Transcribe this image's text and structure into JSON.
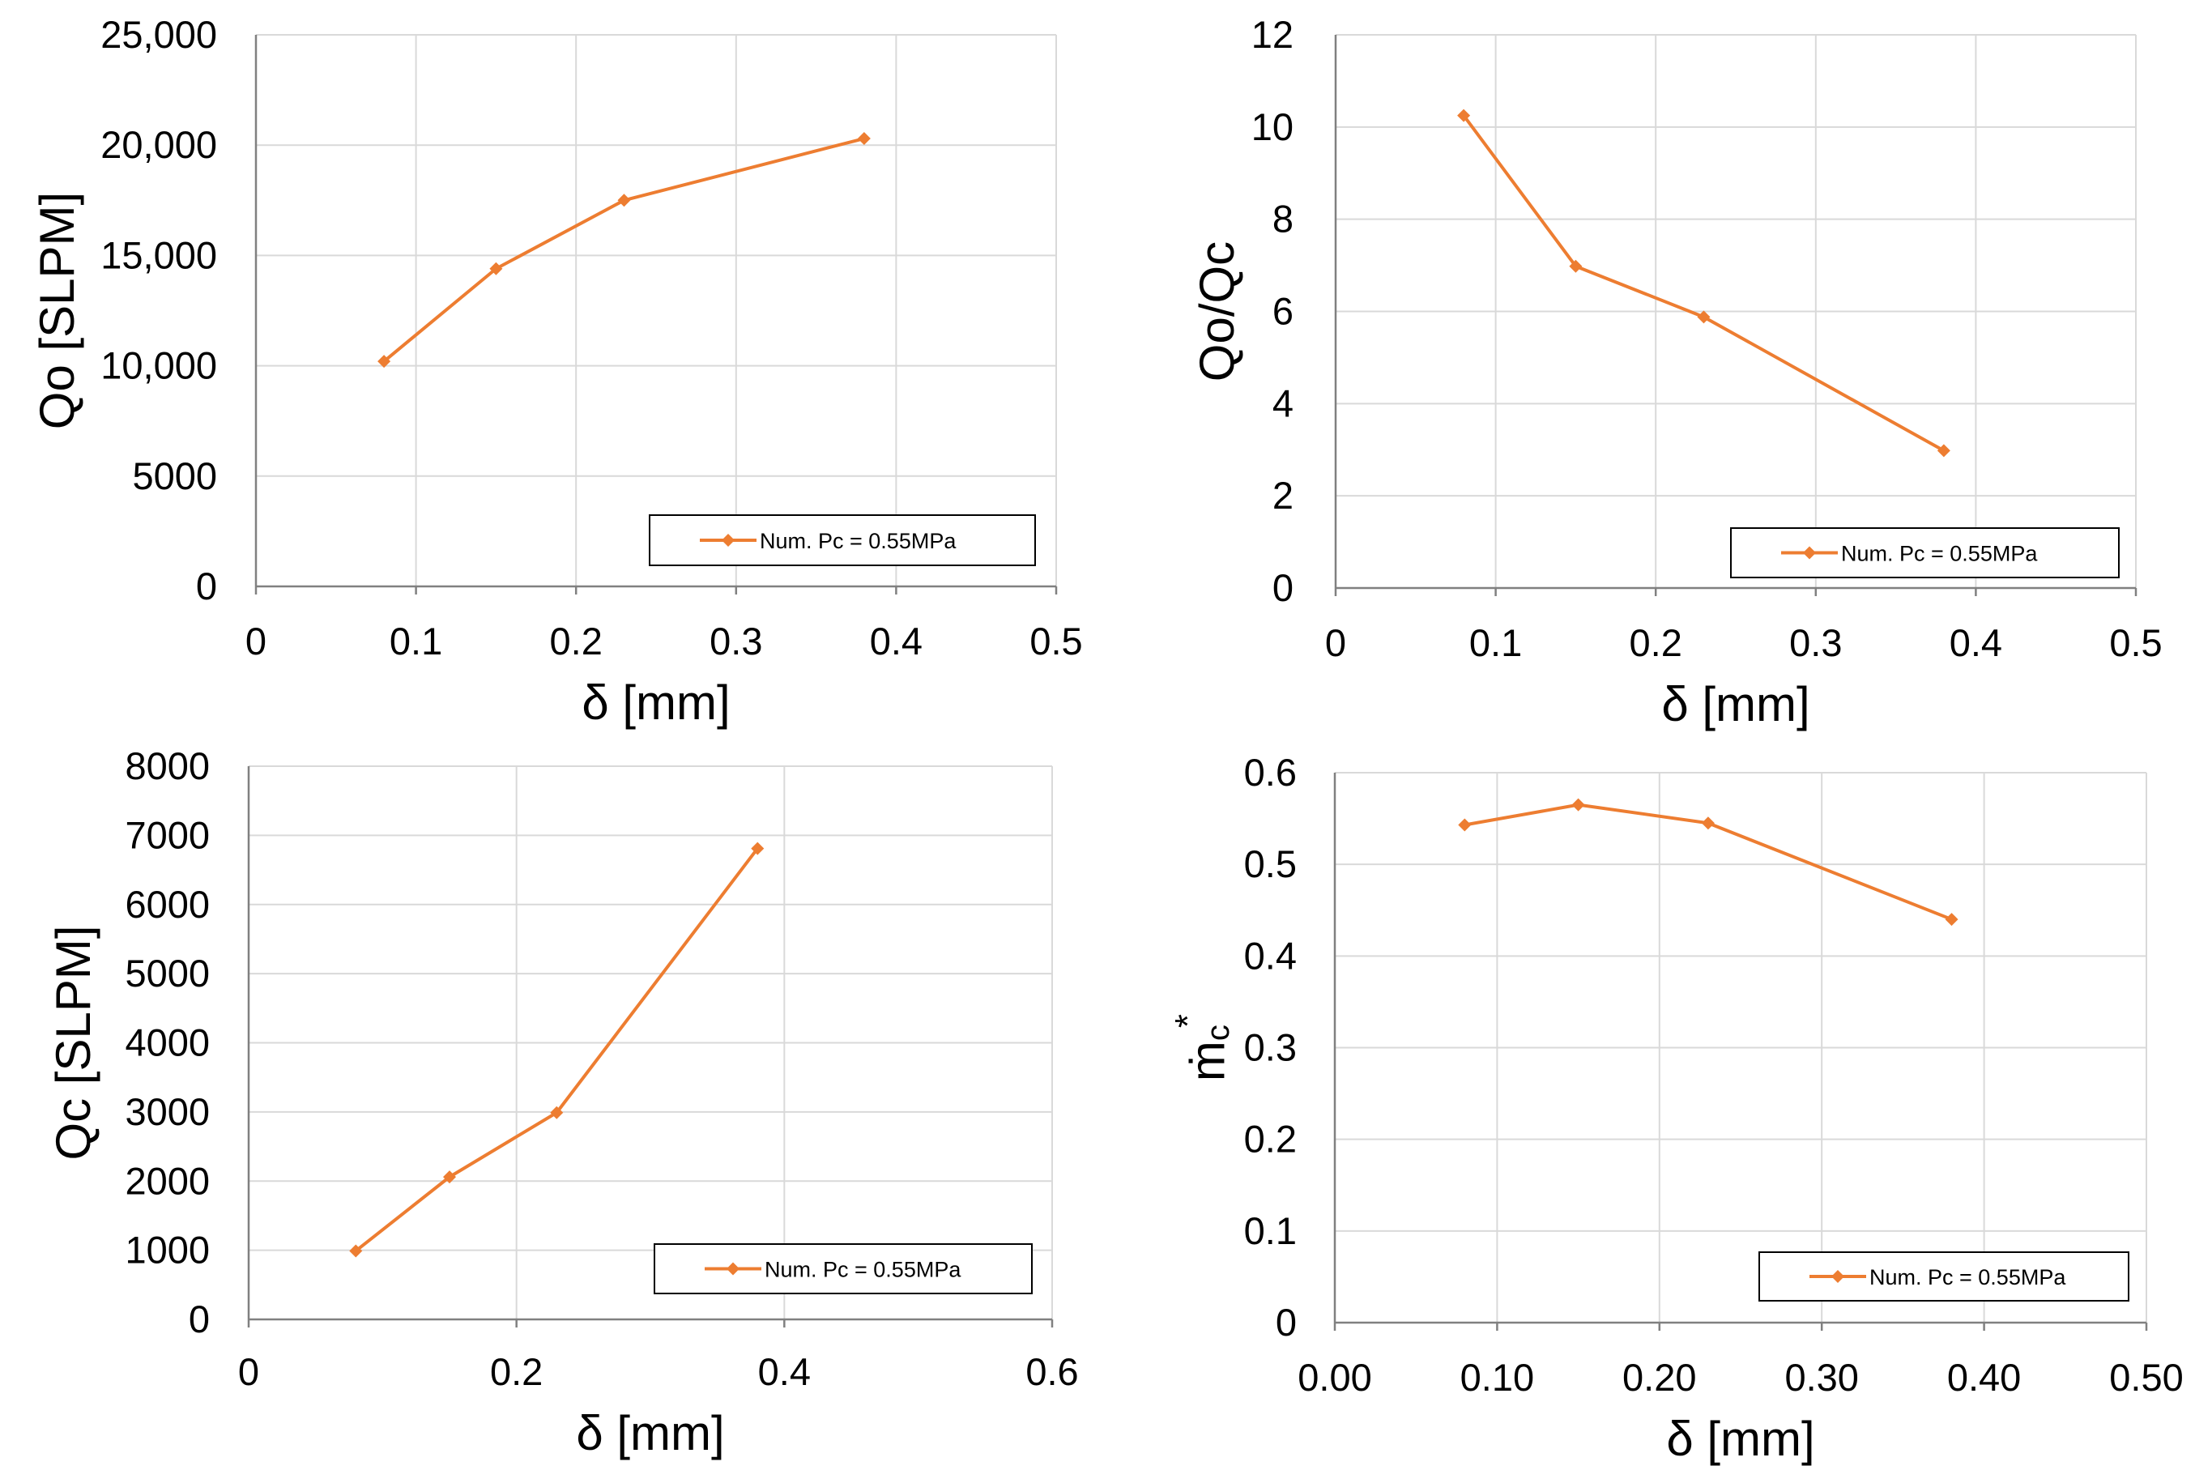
{
  "colors": {
    "series": "#ED7D31",
    "grid": "#D9D9D9",
    "axis": "#808080"
  },
  "chart_data": [
    {
      "type": "line",
      "title": "",
      "xlabel": "δ [mm]",
      "ylabel": "Qo [SLPM]",
      "xlim": [
        0,
        0.5
      ],
      "ylim": [
        0,
        25000
      ],
      "xticks": [
        0,
        0.1,
        0.2,
        0.3,
        0.4,
        0.5
      ],
      "xtick_labels": [
        "0",
        "0.1",
        "0.2",
        "0.3",
        "0.4",
        "0.5"
      ],
      "yticks": [
        0,
        5000,
        10000,
        15000,
        20000,
        25000
      ],
      "ytick_labels": [
        "0",
        "5000",
        "10,000",
        "15,000",
        "20,000",
        "25,000"
      ],
      "grid": true,
      "legend_position": "bottom-right",
      "series": [
        {
          "name": "Num. Pc = 0.55MPa",
          "x": [
            0.08,
            0.15,
            0.23,
            0.38
          ],
          "y": [
            10200,
            14400,
            17500,
            20300
          ]
        }
      ]
    },
    {
      "type": "line",
      "title": "",
      "xlabel": "δ [mm]",
      "ylabel": "Qo/Qc",
      "xlim": [
        0,
        0.5
      ],
      "ylim": [
        0,
        12
      ],
      "xticks": [
        0,
        0.1,
        0.2,
        0.3,
        0.4,
        0.5
      ],
      "xtick_labels": [
        "0",
        "0.1",
        "0.2",
        "0.3",
        "0.4",
        "0.5"
      ],
      "yticks": [
        0,
        2,
        4,
        6,
        8,
        10,
        12
      ],
      "ytick_labels": [
        "0",
        "2",
        "4",
        "6",
        "8",
        "10",
        "12"
      ],
      "grid": true,
      "legend_position": "bottom-right",
      "series": [
        {
          "name": "Num. Pc = 0.55MPa",
          "x": [
            0.08,
            0.15,
            0.23,
            0.38
          ],
          "y": [
            10.25,
            6.98,
            5.88,
            2.98
          ]
        }
      ]
    },
    {
      "type": "line",
      "title": "",
      "xlabel": "δ [mm]",
      "ylabel": "Qc [SLPM]",
      "xlim": [
        0,
        0.6
      ],
      "ylim": [
        0,
        8000
      ],
      "xticks": [
        0,
        0.2,
        0.4,
        0.6
      ],
      "xtick_labels": [
        "0",
        "0.2",
        "0.4",
        "0.6"
      ],
      "yticks": [
        0,
        1000,
        2000,
        3000,
        4000,
        5000,
        6000,
        7000,
        8000
      ],
      "ytick_labels": [
        "0",
        "1000",
        "2000",
        "3000",
        "4000",
        "5000",
        "6000",
        "7000",
        "8000"
      ],
      "grid": true,
      "legend_position": "bottom-right",
      "series": [
        {
          "name": "Num. Pc = 0.55MPa",
          "x": [
            0.08,
            0.15,
            0.23,
            0.38
          ],
          "y": [
            990,
            2060,
            2990,
            6810
          ]
        }
      ]
    },
    {
      "type": "line",
      "title": "",
      "xlabel": "δ [mm]",
      "ylabel": "ṁ",
      "ylabel_sub": "c",
      "ylabel_sup": "*",
      "xlim": [
        0,
        0.5
      ],
      "ylim": [
        0,
        0.6
      ],
      "xticks": [
        0,
        0.1,
        0.2,
        0.3,
        0.4,
        0.5
      ],
      "xtick_labels": [
        "0.00",
        "0.10",
        "0.20",
        "0.30",
        "0.40",
        "0.50"
      ],
      "yticks": [
        0,
        0.1,
        0.2,
        0.3,
        0.4,
        0.5,
        0.6
      ],
      "ytick_labels": [
        "0",
        "0.1",
        "0.2",
        "0.3",
        "0.4",
        "0.5",
        "0.6"
      ],
      "grid": true,
      "legend_position": "bottom-right",
      "series": [
        {
          "name": "Num. Pc = 0.55MPa",
          "x": [
            0.08,
            0.15,
            0.23,
            0.38
          ],
          "y": [
            0.543,
            0.565,
            0.545,
            0.44
          ]
        }
      ]
    }
  ]
}
